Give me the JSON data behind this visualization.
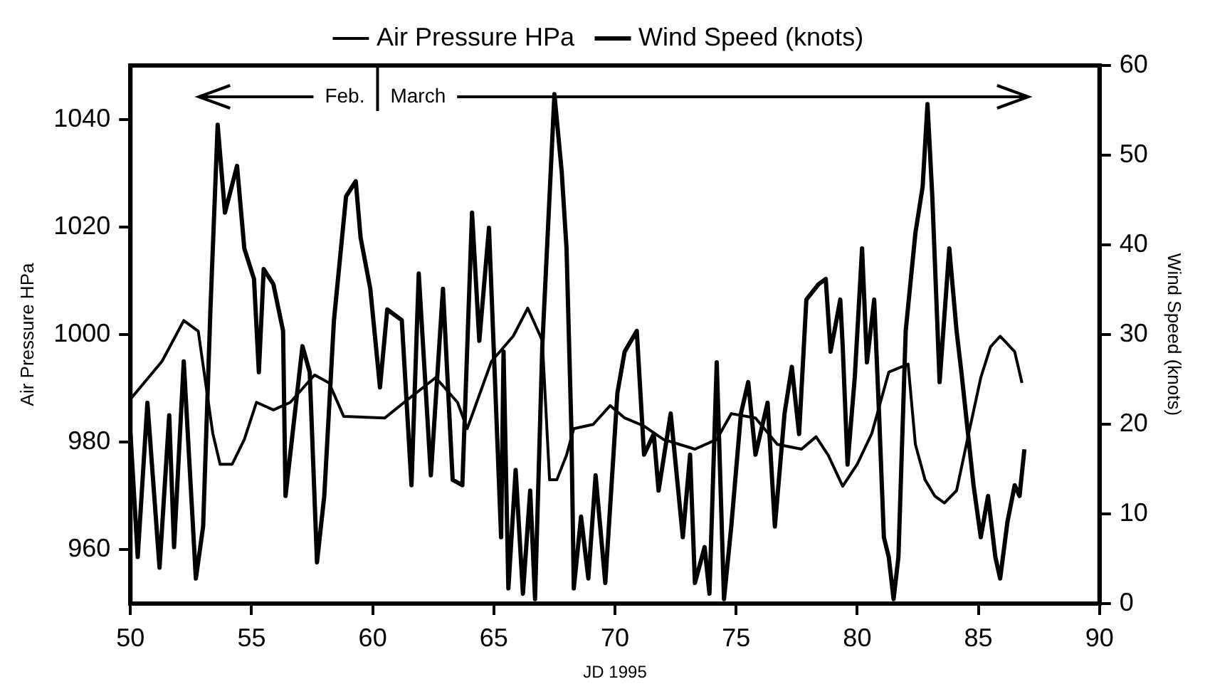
{
  "chart_data": {
    "type": "line",
    "xlabel": "JD 1995",
    "ylabel": "Air Pressure HPa",
    "y2label": "Wind Speed (knots)",
    "xlim": [
      50,
      90
    ],
    "xticks": [
      50,
      55,
      60,
      65,
      70,
      75,
      80,
      85,
      90
    ],
    "ylim": [
      950,
      1050
    ],
    "yticks": [
      960,
      980,
      1000,
      1020,
      1040
    ],
    "y2lim": [
      0,
      60
    ],
    "y2ticks": [
      0,
      10,
      20,
      30,
      40,
      50,
      60
    ],
    "grid": false,
    "legend": "top",
    "marker": "none",
    "line_style": "solid",
    "annotations": [
      "Feb.",
      "March"
    ],
    "series": [
      {
        "name": "Air Pressure HPa",
        "color": "#000000",
        "axis": "y",
        "x": [
          50,
          51.3,
          52.2,
          52.8,
          53.4,
          53.7,
          54.2,
          54.7,
          55.2,
          55.9,
          56.6,
          57.6,
          58.2,
          58.8,
          60.5,
          61.3,
          62.6,
          63.5,
          63.9,
          64.9,
          65.8,
          66.4,
          67,
          67.3,
          67.6,
          68,
          68.3,
          69.1,
          69.8,
          70.4,
          71.2,
          72,
          73.3,
          74.2,
          74.8,
          75.8,
          76.7,
          77.7,
          78.3,
          78.8,
          79.4,
          80,
          80.6,
          81.3,
          82.1,
          82.4,
          82.8,
          83.2,
          83.6,
          84.1,
          84.6,
          85.1,
          85.5,
          85.9,
          86.5,
          86.8
        ],
        "values": [
          988,
          995,
          1002.6,
          1000.6,
          981.6,
          975.9,
          975.9,
          980.5,
          987.4,
          986,
          987.4,
          992.5,
          991,
          984.8,
          984.5,
          987.4,
          992,
          987.4,
          982.5,
          995,
          999.7,
          1004.9,
          998.9,
          973,
          973,
          977.6,
          982.5,
          983.3,
          986.8,
          984.5,
          983,
          980.5,
          978.7,
          980.5,
          985.3,
          984.5,
          979.6,
          978.7,
          981,
          977.6,
          971.8,
          975.9,
          981.6,
          993,
          994.5,
          979.6,
          973,
          970,
          968.7,
          971,
          981.6,
          992,
          997.7,
          999.7,
          996.8,
          991
        ]
      },
      {
        "name": "Wind Speed (knots)",
        "color": "#000000",
        "axis": "y2",
        "x": [
          50,
          50.3,
          50.7,
          51.2,
          51.6,
          51.8,
          52.2,
          52.7,
          53,
          53.3,
          53.6,
          53.9,
          54.4,
          54.7,
          55.1,
          55.3,
          55.5,
          55.9,
          56.3,
          56.4,
          57.1,
          57.4,
          57.7,
          58,
          58.4,
          58.9,
          59.3,
          59.5,
          59.9,
          60.3,
          60.6,
          61.2,
          61.6,
          61.9,
          62.4,
          62.9,
          63.3,
          63.7,
          64.1,
          64.4,
          64.8,
          65.3,
          65.4,
          65.6,
          65.9,
          66.2,
          66.5,
          66.7,
          67,
          67.4,
          67.5,
          67.8,
          68,
          68.2,
          68.3,
          68.6,
          68.9,
          69.2,
          69.6,
          70.1,
          70.4,
          70.9,
          71.2,
          71.6,
          71.8,
          72.3,
          72.8,
          73.1,
          73.3,
          73.7,
          73.9,
          74.2,
          74.5,
          74.8,
          75.2,
          75.5,
          75.8,
          76.3,
          76.6,
          77,
          77.3,
          77.6,
          77.9,
          78.4,
          78.7,
          78.9,
          79.3,
          79.4,
          79.6,
          79.9,
          80.2,
          80.4,
          80.7,
          80.9,
          81.1,
          81.3,
          81.5,
          81.7,
          82,
          82.4,
          82.7,
          82.9,
          83.1,
          83.4,
          83.8,
          84.1,
          84.3,
          84.8,
          85.1,
          85.4,
          85.7,
          85.9,
          86.2,
          86.5,
          86.7,
          86.9
        ],
        "values": [
          19,
          5.2,
          22.4,
          4,
          21,
          6.3,
          27,
          2.8,
          8.6,
          32.7,
          53.4,
          43.6,
          48.8,
          39.6,
          36.2,
          25.8,
          37.3,
          35.6,
          30.4,
          12,
          28.7,
          25.8,
          4.6,
          12,
          31.6,
          45.4,
          47.1,
          40.8,
          35.1,
          24.1,
          32.8,
          31.6,
          13.2,
          36.8,
          14.3,
          35.1,
          13.8,
          13.2,
          43.6,
          29.3,
          41.9,
          7.4,
          28.1,
          1.7,
          14.9,
          1.1,
          12.6,
          0.5,
          28.7,
          51.1,
          56.8,
          48.2,
          39.6,
          19.5,
          1.7,
          9.7,
          2.8,
          14.3,
          2.3,
          23.5,
          28.1,
          30.4,
          16.6,
          18.9,
          12.6,
          21.2,
          7.4,
          16.6,
          2.3,
          6.3,
          1.1,
          26.9,
          0.5,
          8.6,
          21.2,
          24.7,
          16.6,
          22.4,
          8.6,
          21.2,
          26.4,
          18.9,
          33.9,
          35.6,
          36.2,
          28.1,
          33.9,
          28.7,
          15.5,
          25.3,
          39.6,
          26.9,
          33.9,
          21.2,
          7.4,
          5.2,
          0.5,
          5.2,
          30.4,
          41.3,
          46.5,
          55.7,
          45.3,
          24.7,
          39.6,
          30.4,
          25.8,
          13.2,
          7.4,
          12,
          5.2,
          2.8,
          9.1,
          13.2,
          12,
          17.2
        ]
      }
    ]
  }
}
